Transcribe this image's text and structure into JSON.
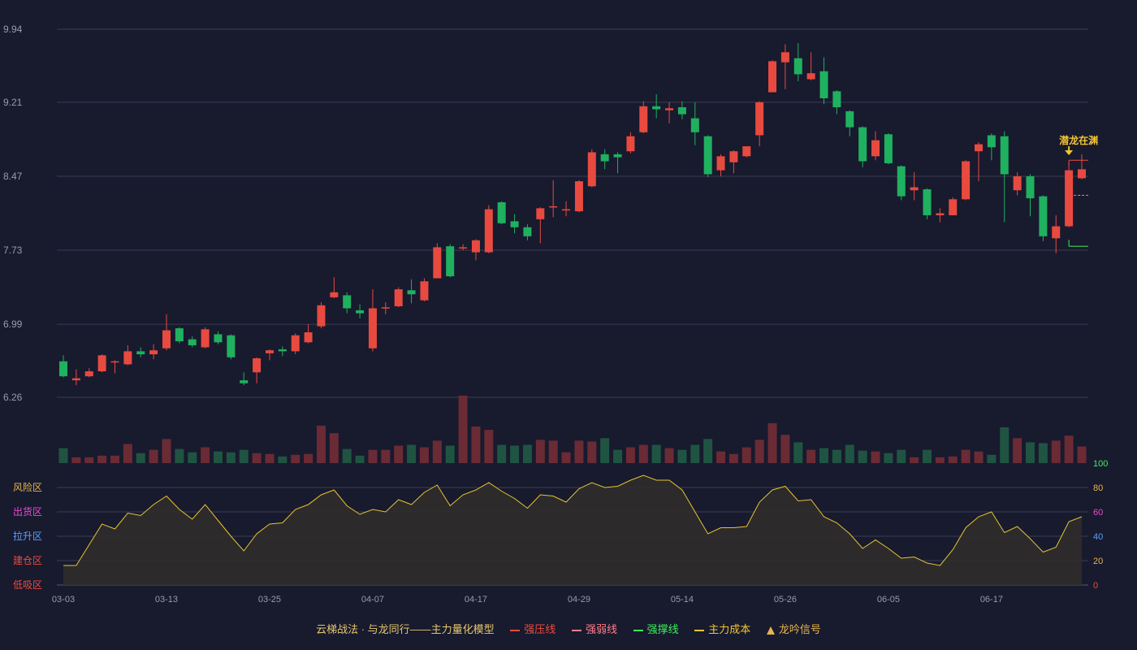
{
  "legend": {
    "title": "云梯战法 · 与龙同行——主力量化模型",
    "items": [
      {
        "label": "强压线",
        "color": "#ee4b3d",
        "style": "solid"
      },
      {
        "label": "强弱线",
        "color": "#ff7f89",
        "style": "dashed"
      },
      {
        "label": "强撑线",
        "color": "#3cf05a",
        "style": "solid"
      },
      {
        "label": "主力成本",
        "color": "#f2c531",
        "style": "dashed"
      },
      {
        "label": "龙吟信号",
        "color": "#e7b54a",
        "style": "triangle"
      }
    ]
  },
  "colors": {
    "background": "#181a2e",
    "up": "#e84a3f",
    "down": "#1fb15f",
    "vol_up": "#6a2b35",
    "vol_down": "#1f5442",
    "grid": "#3a3d52",
    "axis_text": "#9a9aaa",
    "osc_line": "#e5c52f",
    "osc_fill": "#302c2c",
    "annotation": "#f2c531"
  },
  "chart_data": {
    "type": "candlestick",
    "price_ticks": [
      "9.94",
      "9.21",
      "8.47",
      "7.73",
      "6.99",
      "6.26"
    ],
    "ylim": [
      6.26,
      9.94
    ],
    "x_ticks": [
      {
        "label": "03-03",
        "index": 0
      },
      {
        "label": "03-13",
        "index": 8
      },
      {
        "label": "03-25",
        "index": 16
      },
      {
        "label": "04-07",
        "index": 24
      },
      {
        "label": "04-17",
        "index": 32
      },
      {
        "label": "04-29",
        "index": 40
      },
      {
        "label": "05-14",
        "index": 48
      },
      {
        "label": "05-26",
        "index": 56
      },
      {
        "label": "06-05",
        "index": 64
      },
      {
        "label": "06-17",
        "index": 72
      }
    ],
    "candles": [
      [
        6.62,
        6.47,
        6.68,
        6.46
      ],
      [
        6.43,
        6.45,
        6.54,
        6.38
      ],
      [
        6.47,
        6.52,
        6.55,
        6.46
      ],
      [
        6.52,
        6.68,
        6.69,
        6.51
      ],
      [
        6.62,
        6.62,
        6.63,
        6.5
      ],
      [
        6.59,
        6.72,
        6.78,
        6.58
      ],
      [
        6.72,
        6.69,
        6.76,
        6.66
      ],
      [
        6.69,
        6.73,
        6.79,
        6.64
      ],
      [
        6.75,
        6.93,
        7.09,
        6.73
      ],
      [
        6.95,
        6.82,
        6.96,
        6.8
      ],
      [
        6.84,
        6.78,
        6.87,
        6.76
      ],
      [
        6.76,
        6.94,
        6.96,
        6.75
      ],
      [
        6.89,
        6.81,
        6.92,
        6.79
      ],
      [
        6.88,
        6.66,
        6.89,
        6.64
      ],
      [
        6.43,
        6.4,
        6.51,
        6.38
      ],
      [
        6.51,
        6.65,
        6.66,
        6.4
      ],
      [
        6.7,
        6.73,
        6.74,
        6.63
      ],
      [
        6.74,
        6.72,
        6.77,
        6.67
      ],
      [
        6.72,
        6.88,
        6.9,
        6.69
      ],
      [
        6.81,
        6.91,
        6.99,
        6.8
      ],
      [
        6.97,
        7.18,
        7.21,
        6.95
      ],
      [
        7.26,
        7.31,
        7.46,
        7.25
      ],
      [
        7.28,
        7.15,
        7.31,
        7.1
      ],
      [
        7.13,
        7.1,
        7.19,
        7.05
      ],
      [
        6.75,
        7.15,
        7.34,
        6.72
      ],
      [
        7.15,
        7.16,
        7.21,
        7.09
      ],
      [
        7.17,
        7.34,
        7.36,
        7.16
      ],
      [
        7.33,
        7.29,
        7.44,
        7.2
      ],
      [
        7.23,
        7.42,
        7.45,
        7.22
      ],
      [
        7.45,
        7.76,
        7.8,
        7.45
      ],
      [
        7.77,
        7.47,
        7.79,
        7.46
      ],
      [
        7.75,
        7.76,
        7.79,
        7.73
      ],
      [
        7.71,
        7.83,
        7.84,
        7.63
      ],
      [
        7.71,
        8.14,
        8.18,
        7.7
      ],
      [
        8.21,
        8.0,
        8.22,
        7.99
      ],
      [
        8.02,
        7.96,
        8.09,
        7.9
      ],
      [
        7.96,
        7.87,
        7.99,
        7.83
      ],
      [
        8.04,
        8.15,
        8.16,
        7.8
      ],
      [
        8.17,
        8.17,
        8.43,
        8.06
      ],
      [
        8.13,
        8.14,
        8.22,
        8.07
      ],
      [
        8.12,
        8.42,
        8.43,
        8.11
      ],
      [
        8.37,
        8.71,
        8.74,
        8.36
      ],
      [
        8.69,
        8.62,
        8.74,
        8.54
      ],
      [
        8.69,
        8.66,
        8.71,
        8.5
      ],
      [
        8.72,
        8.87,
        8.91,
        8.7
      ],
      [
        8.91,
        9.17,
        9.22,
        8.9
      ],
      [
        9.17,
        9.14,
        9.29,
        9.05
      ],
      [
        9.13,
        9.15,
        9.21,
        9.0
      ],
      [
        9.16,
        9.09,
        9.22,
        9.04
      ],
      [
        9.05,
        8.91,
        9.21,
        8.78
      ],
      [
        8.87,
        8.49,
        8.88,
        8.46
      ],
      [
        8.53,
        8.67,
        8.69,
        8.47
      ],
      [
        8.61,
        8.72,
        8.73,
        8.5
      ],
      [
        8.67,
        8.77,
        8.76,
        8.66
      ],
      [
        8.88,
        9.21,
        9.22,
        8.77
      ],
      [
        9.31,
        9.62,
        9.63,
        9.31
      ],
      [
        9.61,
        9.71,
        9.79,
        9.34
      ],
      [
        9.65,
        9.49,
        9.8,
        9.42
      ],
      [
        9.44,
        9.5,
        9.71,
        9.43
      ],
      [
        9.52,
        9.25,
        9.66,
        9.19
      ],
      [
        9.32,
        9.16,
        9.33,
        9.09
      ],
      [
        9.12,
        8.96,
        9.13,
        8.87
      ],
      [
        8.96,
        8.62,
        8.97,
        8.56
      ],
      [
        8.67,
        8.83,
        8.92,
        8.63
      ],
      [
        8.89,
        8.6,
        8.9,
        8.59
      ],
      [
        8.57,
        8.27,
        8.58,
        8.23
      ],
      [
        8.33,
        8.36,
        8.51,
        8.23
      ],
      [
        8.34,
        8.08,
        8.35,
        8.04
      ],
      [
        8.08,
        8.1,
        8.15,
        8.01
      ],
      [
        8.08,
        8.24,
        8.26,
        8.08
      ],
      [
        8.24,
        8.62,
        8.63,
        8.23
      ],
      [
        8.72,
        8.79,
        8.81,
        8.42
      ],
      [
        8.88,
        8.76,
        8.9,
        8.63
      ],
      [
        8.87,
        8.49,
        8.92,
        8.01
      ],
      [
        8.33,
        8.47,
        8.51,
        8.28
      ],
      [
        8.47,
        8.25,
        8.49,
        8.07
      ],
      [
        8.27,
        7.87,
        8.28,
        7.82
      ],
      [
        7.85,
        7.97,
        8.08,
        7.7
      ],
      [
        7.97,
        8.53,
        8.61,
        7.96
      ],
      [
        8.45,
        8.54,
        8.69,
        8.44
      ]
    ],
    "volume": [
      1.8,
      0.7,
      0.7,
      0.9,
      0.9,
      2.3,
      1.2,
      1.6,
      2.9,
      1.7,
      1.3,
      1.9,
      1.4,
      1.3,
      1.6,
      1.2,
      1.1,
      0.8,
      1.0,
      1.1,
      4.5,
      3.6,
      1.7,
      0.9,
      1.6,
      1.6,
      2.1,
      2.2,
      1.9,
      2.7,
      2.1,
      8.1,
      4.4,
      4.0,
      2.2,
      2.1,
      2.2,
      2.8,
      2.7,
      1.3,
      2.7,
      2.6,
      3.0,
      1.6,
      1.9,
      2.2,
      2.2,
      1.8,
      1.6,
      2.2,
      2.9,
      1.4,
      1.1,
      1.9,
      2.8,
      4.8,
      3.4,
      2.5,
      1.6,
      1.8,
      1.6,
      2.2,
      1.5,
      1.4,
      1.2,
      1.6,
      0.7,
      1.6,
      0.7,
      0.8,
      1.6,
      1.4,
      1.0,
      4.3,
      3.0,
      2.5,
      2.4,
      2.7,
      3.3,
      2.0
    ],
    "volume_max": 8.1,
    "oscillator": {
      "ylim": [
        0,
        100
      ],
      "ticks": [
        {
          "value": 100,
          "label": "100",
          "color": "#3cf05a"
        },
        {
          "value": 80,
          "label": "80",
          "color": "#e7b54a"
        },
        {
          "value": 60,
          "label": "60",
          "color": "#e84ccf"
        },
        {
          "value": 40,
          "label": "40",
          "color": "#5aa2ff"
        },
        {
          "value": 20,
          "label": "20",
          "color": "#e7b54a"
        },
        {
          "value": 0,
          "label": "0",
          "color": "#ee4b3d"
        }
      ],
      "zones": [
        {
          "label": "风险区",
          "value": 80,
          "color": "#e7b54a"
        },
        {
          "label": "出货区",
          "value": 60,
          "color": "#e84ccf"
        },
        {
          "label": "拉升区",
          "value": 40,
          "color": "#5aa2ff"
        },
        {
          "label": "建仓区",
          "value": 20,
          "color": "#ee4b3d"
        },
        {
          "label": "低吸区",
          "value": 0,
          "color": "#ee4b3d"
        }
      ],
      "values": [
        16,
        16,
        33,
        50,
        46,
        59,
        57,
        66,
        73,
        62,
        54,
        66,
        53,
        40,
        28,
        42,
        50,
        51,
        62,
        66,
        74,
        78,
        65,
        58,
        62,
        60,
        70,
        66,
        76,
        82,
        65,
        74,
        78,
        84,
        77,
        71,
        63,
        74,
        73,
        68,
        79,
        84,
        80,
        81,
        86,
        90,
        86,
        86,
        78,
        60,
        42,
        47,
        47,
        48,
        68,
        78,
        81,
        69,
        70,
        56,
        51,
        42,
        30,
        37,
        30,
        22,
        23,
        18,
        16,
        29,
        47,
        56,
        60,
        43,
        48,
        38,
        27,
        31,
        52,
        56
      ]
    },
    "last_day_lines": {
      "pressure": 8.63,
      "strength": 8.28,
      "support": 7.77,
      "signal_label": "潜龙在渊",
      "signal_index": 78
    }
  }
}
